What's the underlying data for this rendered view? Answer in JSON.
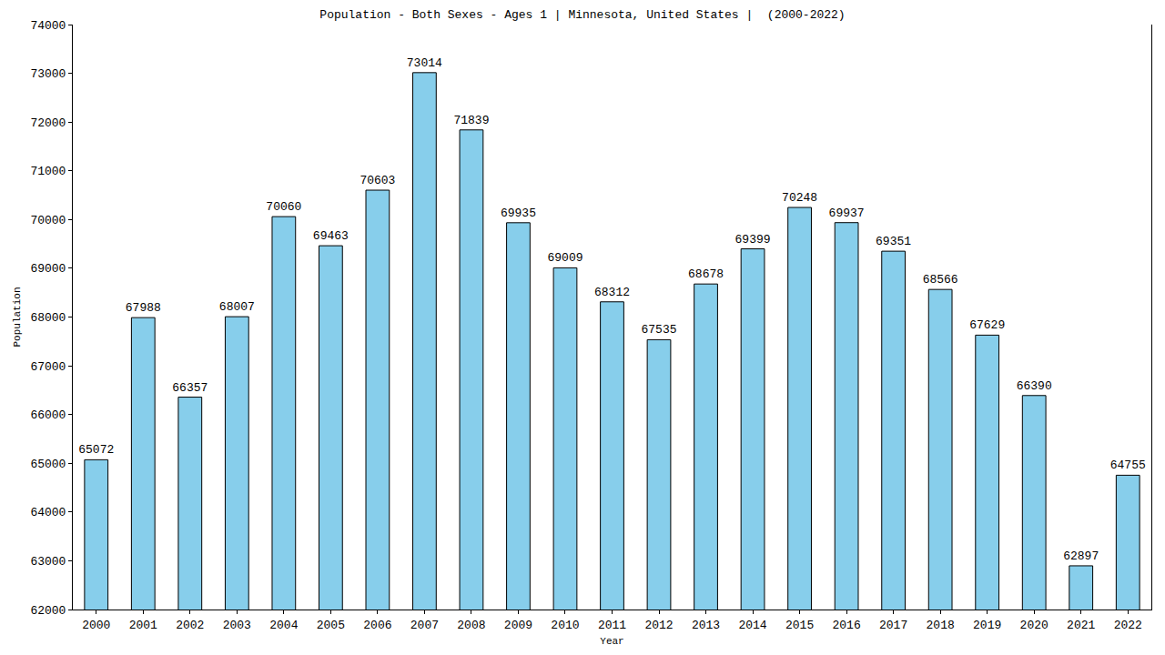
{
  "chart_data": {
    "type": "bar",
    "title": "Population - Both Sexes - Ages 1 | Minnesota, United States |  (2000-2022)",
    "x_label": "Year",
    "y_label": "Population",
    "categories": [
      "2000",
      "2001",
      "2002",
      "2003",
      "2004",
      "2005",
      "2006",
      "2007",
      "2008",
      "2009",
      "2010",
      "2011",
      "2012",
      "2013",
      "2014",
      "2015",
      "2016",
      "2017",
      "2018",
      "2019",
      "2020",
      "2021",
      "2022"
    ],
    "values": [
      65072,
      67988,
      66357,
      68007,
      70060,
      69463,
      70603,
      73014,
      71839,
      69935,
      69009,
      68312,
      67535,
      68678,
      69399,
      70248,
      69937,
      69351,
      68566,
      67629,
      66390,
      62897,
      64755
    ],
    "color": "#87ceeb",
    "ylim": [
      62000,
      74000
    ],
    "yticks": [
      62000,
      63000,
      64000,
      65000,
      66000,
      67000,
      68000,
      69000,
      70000,
      71000,
      72000,
      73000,
      74000
    ],
    "grid": false,
    "data_labels": true
  }
}
